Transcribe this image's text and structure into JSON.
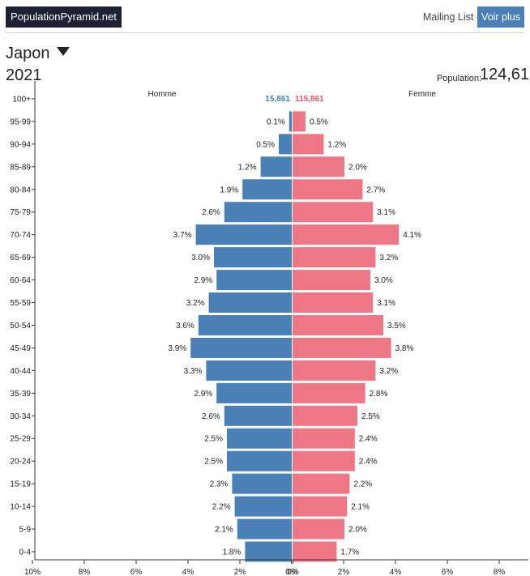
{
  "header": {
    "logo": "PopulationPyramid.net",
    "mailing_list": "Mailing List -",
    "voir_plus": "Voir plus"
  },
  "country": {
    "name": "Japon",
    "year": "2021"
  },
  "population": {
    "label": "Population:",
    "value": "124,61"
  },
  "colors": {
    "male": "#4a80b5",
    "female": "#ee7785",
    "male_text": "#4a80b5",
    "female_text": "#e0566c"
  },
  "chart_data": {
    "type": "bar",
    "title": "Japon 2021",
    "left_label": "Homme",
    "right_label": "Femme",
    "male_count": "15,861",
    "female_count": "115,861",
    "categories": [
      "100+",
      "95-99",
      "90-94",
      "85-89",
      "80-84",
      "75-79",
      "70-74",
      "65-69",
      "60-64",
      "55-59",
      "50-54",
      "45-49",
      "40-44",
      "35-39",
      "30-34",
      "25-29",
      "20-24",
      "15-19",
      "10-14",
      "5-9",
      "0-4"
    ],
    "series": [
      {
        "name": "Homme",
        "values": [
          0.0,
          0.1,
          0.5,
          1.2,
          1.9,
          2.6,
          3.7,
          3.0,
          2.9,
          3.2,
          3.6,
          3.9,
          3.3,
          2.9,
          2.6,
          2.5,
          2.5,
          2.3,
          2.2,
          2.1,
          1.8
        ]
      },
      {
        "name": "Femme",
        "values": [
          0.0,
          0.5,
          1.2,
          2.0,
          2.7,
          3.1,
          4.1,
          3.2,
          3.0,
          3.1,
          3.5,
          3.8,
          3.2,
          2.8,
          2.5,
          2.4,
          2.4,
          2.2,
          2.1,
          2.0,
          1.7
        ]
      }
    ],
    "value_labels": {
      "male": [
        "",
        "0.1%",
        "0.5%",
        "1.2%",
        "1.9%",
        "2.6%",
        "3.7%",
        "3.0%",
        "2.9%",
        "3.2%",
        "3.6%",
        "3.9%",
        "3.3%",
        "2.9%",
        "2.6%",
        "2.5%",
        "2.5%",
        "2.3%",
        "2.2%",
        "2.1%",
        "1.8%"
      ],
      "female": [
        "",
        "0.5%",
        "1.2%",
        "2.0%",
        "2.7%",
        "3.1%",
        "4.1%",
        "3.2%",
        "3.0%",
        "3.1%",
        "3.5%",
        "3.8%",
        "3.2%",
        "2.8%",
        "2.5%",
        "2.4%",
        "2.4%",
        "2.2%",
        "2.1%",
        "2.0%",
        "1.7%"
      ]
    },
    "x_ticks": [
      "10%",
      "8%",
      "6%",
      "4%",
      "2%",
      "0%",
      "0%",
      "2%",
      "4%",
      "6%",
      "8%"
    ],
    "xlim": [
      -10,
      9
    ],
    "unit": "%"
  }
}
